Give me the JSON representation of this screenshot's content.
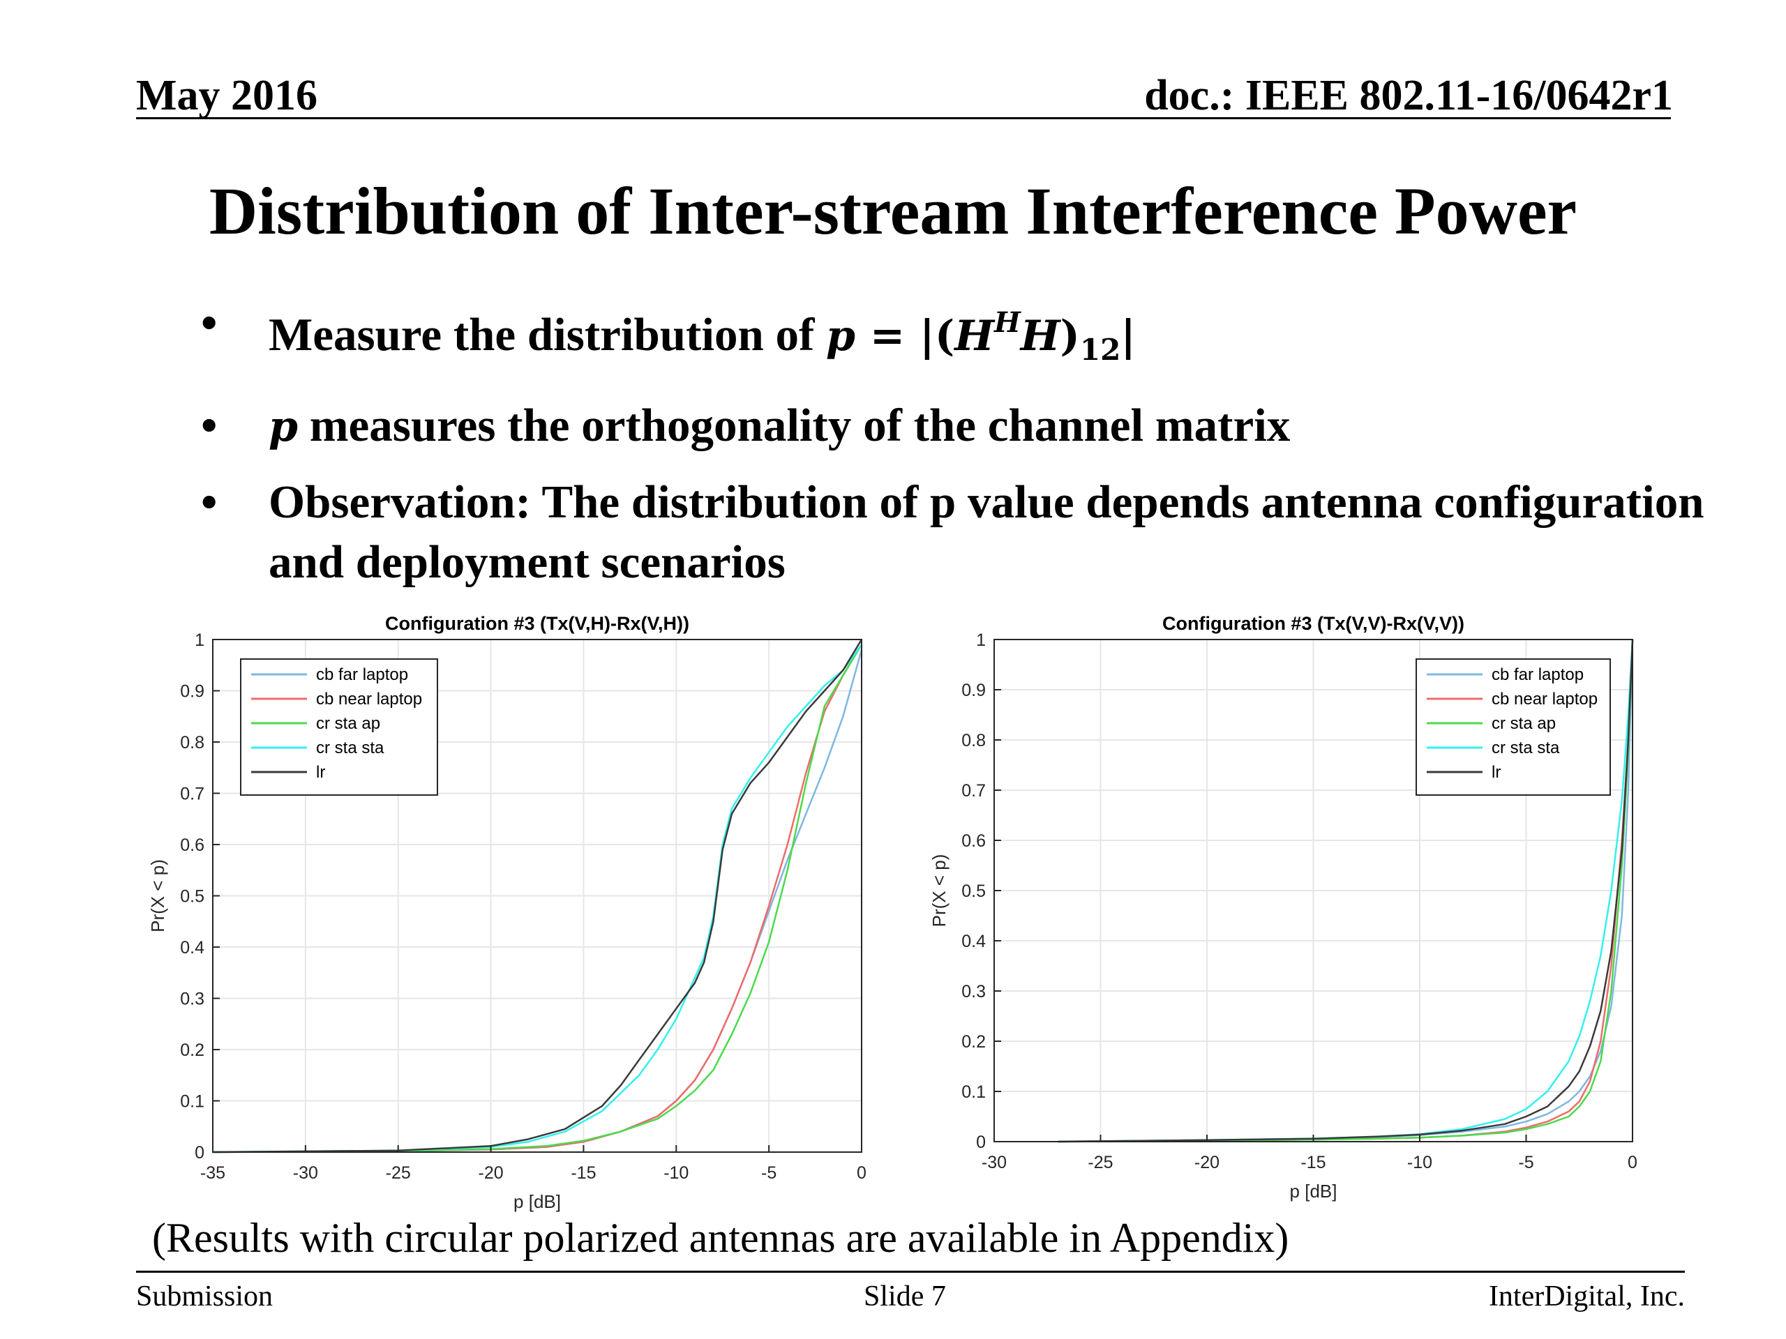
{
  "header": {
    "date": "May 2016",
    "doc": "doc.: IEEE 802.11-16/0642r1"
  },
  "title": "Distribution of Inter-stream Interference Power",
  "bullets": {
    "b1_text": "Measure the distribution of",
    "b1_math": {
      "p": "p",
      "eq": " = |(",
      "H1": "H",
      "sup": "H",
      "H2": "H",
      "close": ")",
      "sub": "12",
      "bar": "|"
    },
    "b2_var": "p",
    "b2_text": " measures the orthogonality of the channel matrix",
    "b3_text": "Observation: The distribution of p value depends antenna configuration and deployment scenarios",
    "bullet_char": "•"
  },
  "caption": "(Results with circular polarized antennas are available in Appendix)",
  "footer": {
    "left": "Submission",
    "center": "Slide 7",
    "right": "InterDigital, Inc."
  },
  "colors": {
    "cb far laptop": "#7fb7e0",
    "cb near laptop": "#f06a6a",
    "cr sta ap": "#4cd94c",
    "cr sta sta": "#33f0f0",
    "lr": "#3a3a3a"
  },
  "chart_data": [
    {
      "type": "line",
      "title": "Configuration #3 (Tx(V,H)-Rx(V,H))",
      "xlabel": "p [dB]",
      "ylabel": "Pr(X < p)",
      "xlim": [
        -35,
        0
      ],
      "ylim": [
        0,
        1
      ],
      "xticks": [
        -35,
        -30,
        -25,
        -20,
        -15,
        -10,
        -5,
        0
      ],
      "yticks": [
        0,
        0.1,
        0.2,
        0.3,
        0.4,
        0.5,
        0.6,
        0.7,
        0.8,
        0.9,
        1
      ],
      "grid": true,
      "legend_position": "top-left",
      "series": [
        {
          "name": "cb far laptop",
          "x": [
            -35,
            -25,
            -20,
            -17,
            -15,
            -13,
            -11,
            -10,
            -9,
            -8,
            -7,
            -6,
            -5,
            -4,
            -3,
            -2,
            -1,
            0
          ],
          "y": [
            0,
            0.002,
            0.005,
            0.01,
            0.02,
            0.04,
            0.07,
            0.1,
            0.14,
            0.2,
            0.28,
            0.37,
            0.47,
            0.57,
            0.66,
            0.75,
            0.85,
            0.98
          ]
        },
        {
          "name": "cb near laptop",
          "x": [
            -35,
            -25,
            -20,
            -17,
            -15,
            -13,
            -11,
            -10,
            -9,
            -8,
            -7,
            -6,
            -5,
            -4,
            -3,
            -2,
            -1,
            0
          ],
          "y": [
            0,
            0.002,
            0.005,
            0.01,
            0.02,
            0.04,
            0.07,
            0.1,
            0.14,
            0.2,
            0.28,
            0.37,
            0.48,
            0.6,
            0.74,
            0.86,
            0.93,
            0.99
          ]
        },
        {
          "name": "cr sta ap",
          "x": [
            -35,
            -25,
            -20,
            -17,
            -15,
            -13,
            -11,
            -10,
            -9,
            -8,
            -7,
            -6,
            -5,
            -4,
            -3,
            -2,
            -1,
            0
          ],
          "y": [
            0,
            0.002,
            0.006,
            0.012,
            0.022,
            0.04,
            0.065,
            0.09,
            0.12,
            0.16,
            0.23,
            0.31,
            0.41,
            0.55,
            0.72,
            0.87,
            0.93,
            0.99
          ]
        },
        {
          "name": "cr sta sta",
          "x": [
            -35,
            -25,
            -20,
            -18,
            -16,
            -14,
            -12,
            -11,
            -10,
            -9,
            -8.5,
            -8,
            -7.5,
            -7,
            -6.5,
            -6,
            -5,
            -4,
            -3,
            -2,
            -1,
            0
          ],
          "y": [
            0,
            0.003,
            0.01,
            0.02,
            0.04,
            0.08,
            0.15,
            0.2,
            0.26,
            0.34,
            0.38,
            0.46,
            0.6,
            0.67,
            0.7,
            0.73,
            0.78,
            0.83,
            0.87,
            0.91,
            0.94,
            0.99
          ]
        },
        {
          "name": "lr",
          "x": [
            -35,
            -25,
            -20,
            -18,
            -16,
            -14,
            -13,
            -12,
            -11,
            -10,
            -9,
            -8.5,
            -8,
            -7.5,
            -7,
            -6.5,
            -6,
            -5,
            -4,
            -3,
            -2,
            -1,
            0
          ],
          "y": [
            0,
            0.003,
            0.012,
            0.025,
            0.045,
            0.09,
            0.13,
            0.18,
            0.23,
            0.28,
            0.33,
            0.37,
            0.45,
            0.59,
            0.66,
            0.69,
            0.72,
            0.76,
            0.81,
            0.86,
            0.9,
            0.94,
            1.0
          ]
        }
      ]
    },
    {
      "type": "line",
      "title": "Configuration #3 (Tx(V,V)-Rx(V,V))",
      "xlabel": "p [dB]",
      "ylabel": "Pr(X < p)",
      "xlim": [
        -30,
        0
      ],
      "ylim": [
        0,
        1
      ],
      "xticks": [
        -30,
        -25,
        -20,
        -15,
        -10,
        -5,
        0
      ],
      "yticks": [
        0,
        0.1,
        0.2,
        0.3,
        0.4,
        0.5,
        0.6,
        0.7,
        0.8,
        0.9,
        1
      ],
      "grid": true,
      "legend_position": "top-right",
      "series": [
        {
          "name": "cb far laptop",
          "x": [
            -27,
            -20,
            -15,
            -12,
            -10,
            -8,
            -6,
            -5,
            -4,
            -3,
            -2.5,
            -2,
            -1.5,
            -1,
            -0.5,
            -0.2,
            0
          ],
          "y": [
            0,
            0.003,
            0.006,
            0.009,
            0.013,
            0.02,
            0.03,
            0.04,
            0.055,
            0.08,
            0.1,
            0.13,
            0.18,
            0.27,
            0.45,
            0.7,
            1.0
          ]
        },
        {
          "name": "cb near laptop",
          "x": [
            -27,
            -20,
            -15,
            -12,
            -10,
            -8,
            -6,
            -5,
            -4,
            -3,
            -2.5,
            -2,
            -1.5,
            -1,
            -0.5,
            -0.2,
            0
          ],
          "y": [
            0,
            0.002,
            0.004,
            0.006,
            0.008,
            0.012,
            0.02,
            0.028,
            0.04,
            0.06,
            0.08,
            0.12,
            0.2,
            0.35,
            0.6,
            0.8,
            1.0
          ]
        },
        {
          "name": "cr sta ap",
          "x": [
            -27,
            -20,
            -15,
            -12,
            -10,
            -8,
            -6,
            -5,
            -4,
            -3,
            -2.5,
            -2,
            -1.5,
            -1,
            -0.5,
            -0.2,
            0
          ],
          "y": [
            0,
            0.002,
            0.004,
            0.006,
            0.008,
            0.012,
            0.018,
            0.025,
            0.035,
            0.05,
            0.07,
            0.1,
            0.16,
            0.3,
            0.55,
            0.78,
            1.0
          ]
        },
        {
          "name": "cr sta sta",
          "x": [
            -27,
            -20,
            -15,
            -12,
            -10,
            -8,
            -6,
            -5,
            -4,
            -3,
            -2.5,
            -2,
            -1.5,
            -1,
            -0.5,
            -0.2,
            0
          ],
          "y": [
            0,
            0.003,
            0.006,
            0.01,
            0.015,
            0.025,
            0.045,
            0.065,
            0.1,
            0.16,
            0.21,
            0.28,
            0.37,
            0.5,
            0.68,
            0.85,
            1.0
          ]
        },
        {
          "name": "lr",
          "x": [
            -27,
            -20,
            -15,
            -12,
            -10,
            -8,
            -6,
            -5,
            -4,
            -3,
            -2.5,
            -2,
            -1.5,
            -1,
            -0.5,
            -0.2,
            0
          ],
          "y": [
            0,
            0.003,
            0.006,
            0.01,
            0.014,
            0.022,
            0.035,
            0.05,
            0.07,
            0.11,
            0.14,
            0.19,
            0.26,
            0.38,
            0.58,
            0.8,
            1.0
          ]
        }
      ]
    }
  ]
}
